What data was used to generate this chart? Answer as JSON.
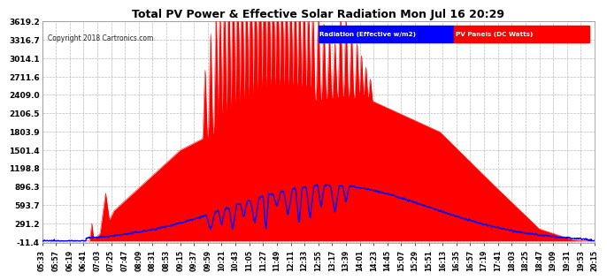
{
  "title": "Total PV Power & Effective Solar Radiation Mon Jul 16 20:29",
  "copyright": "Copyright 2018 Cartronics.com",
  "legend_radiation": "Radiation (Effective w/m2)",
  "legend_pv": "PV Panels (DC Watts)",
  "yticks": [
    -11.4,
    291.2,
    593.7,
    896.3,
    1198.8,
    1501.4,
    1803.9,
    2106.5,
    2409.0,
    2711.6,
    3014.1,
    3316.7,
    3619.2
  ],
  "ymin": -11.4,
  "ymax": 3619.2,
  "bg_color": "#ffffff",
  "grid_color": "#aaaaaa",
  "red_color": "#ff0000",
  "blue_color": "#0000ff",
  "title_color": "#000000",
  "time_labels": [
    "05:33",
    "05:57",
    "06:19",
    "06:41",
    "07:03",
    "07:25",
    "07:47",
    "08:09",
    "08:31",
    "08:53",
    "09:15",
    "09:37",
    "09:59",
    "10:21",
    "10:43",
    "11:05",
    "11:27",
    "11:49",
    "12:11",
    "12:33",
    "12:55",
    "13:17",
    "13:39",
    "14:01",
    "14:23",
    "14:45",
    "15:07",
    "15:29",
    "15:51",
    "16:13",
    "16:35",
    "16:57",
    "17:19",
    "17:41",
    "18:03",
    "18:25",
    "18:47",
    "19:09",
    "19:31",
    "19:53",
    "20:15"
  ]
}
